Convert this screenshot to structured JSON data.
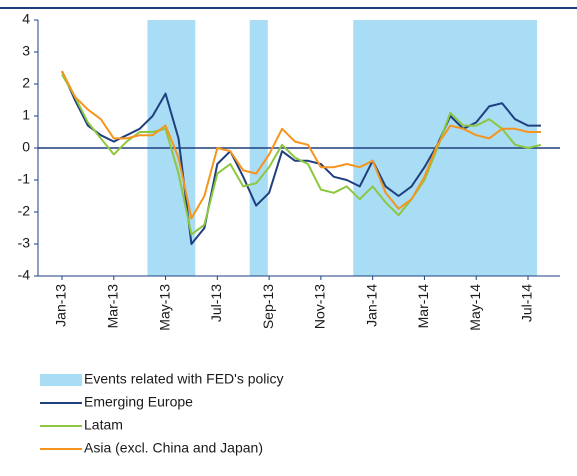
{
  "chart_data": {
    "type": "line",
    "categories": [
      "Jan-13",
      null,
      null,
      null,
      "Mar-13",
      null,
      null,
      null,
      "May-13",
      null,
      null,
      null,
      "Jul-13",
      null,
      null,
      null,
      "Sep-13",
      null,
      null,
      null,
      "Nov-13",
      null,
      null,
      null,
      "Jan-14",
      null,
      null,
      null,
      "Mar-14",
      null,
      null,
      null,
      "May-14",
      null,
      null,
      null,
      "Jul-14",
      null
    ],
    "bands": {
      "name": "Events related with FED's policy",
      "color": "#a8ddf5",
      "ranges": [
        [
          6.6,
          10.3
        ],
        [
          14.5,
          15.9
        ],
        [
          22.5,
          36.7
        ]
      ]
    },
    "series": [
      {
        "name": "Emerging Europe",
        "color": "#1f3f7f",
        "values": [
          2.4,
          1.5,
          0.7,
          0.4,
          0.2,
          0.4,
          0.6,
          1.0,
          1.7,
          0.3,
          -3.0,
          -2.5,
          -0.5,
          -0.1,
          -0.9,
          -1.8,
          -1.4,
          -0.1,
          -0.4,
          -0.4,
          -0.5,
          -0.9,
          -1.0,
          -1.2,
          -0.4,
          -1.2,
          -1.5,
          -1.2,
          -0.6,
          0.1,
          1.0,
          0.6,
          0.8,
          1.3,
          1.4,
          0.9,
          0.7,
          0.7
        ]
      },
      {
        "name": "Latam",
        "color": "#8dc63f",
        "values": [
          2.3,
          1.6,
          0.8,
          0.3,
          -0.2,
          0.2,
          0.5,
          0.5,
          0.6,
          -0.8,
          -2.7,
          -2.4,
          -0.8,
          -0.5,
          -1.2,
          -1.1,
          -0.6,
          0.1,
          -0.3,
          -0.5,
          -1.3,
          -1.4,
          -1.2,
          -1.6,
          -1.2,
          -1.7,
          -2.1,
          -1.6,
          -1.0,
          0.0,
          1.1,
          0.7,
          0.7,
          0.9,
          0.6,
          0.1,
          0.0,
          0.1
        ]
      },
      {
        "name": "Asia (excl. China and Japan)",
        "color": "#f7941d",
        "values": [
          2.4,
          1.6,
          1.2,
          0.9,
          0.3,
          0.3,
          0.4,
          0.4,
          0.7,
          -0.3,
          -2.2,
          -1.5,
          0.0,
          -0.1,
          -0.7,
          -0.8,
          -0.2,
          0.6,
          0.2,
          0.1,
          -0.6,
          -0.6,
          -0.5,
          -0.6,
          -0.4,
          -1.4,
          -1.9,
          -1.6,
          -0.9,
          0.1,
          0.7,
          0.6,
          0.4,
          0.3,
          0.6,
          0.6,
          0.5,
          0.5
        ]
      }
    ],
    "ylim": [
      -4,
      4
    ],
    "yticks": [
      -4,
      -3,
      -2,
      -1,
      0,
      1,
      2,
      3,
      4
    ],
    "legend": "bottom"
  }
}
